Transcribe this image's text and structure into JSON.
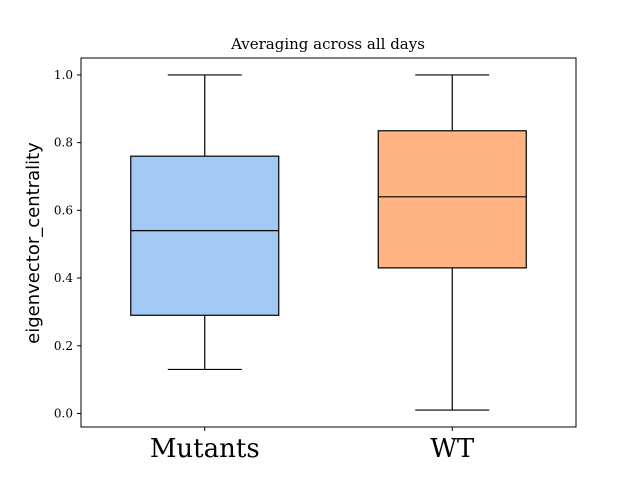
{
  "chart_data": {
    "type": "box",
    "title": "Averaging across all days",
    "xlabel": "",
    "ylabel": "eigenvector_centrality",
    "ylim": [
      -0.04,
      1.05
    ],
    "yticks": [
      "0.0",
      "0.2",
      "0.4",
      "0.6",
      "0.8",
      "1.0"
    ],
    "grid": false,
    "categories": [
      "Mutants",
      "WT"
    ],
    "boxes": [
      {
        "label": "Mutants",
        "whisker_low": 0.13,
        "q1": 0.29,
        "median": 0.54,
        "q3": 0.76,
        "whisker_high": 1.0,
        "color": "#a1c9f4"
      },
      {
        "label": "WT",
        "whisker_low": 0.01,
        "q1": 0.43,
        "median": 0.64,
        "q3": 0.835,
        "whisker_high": 1.0,
        "color": "#ffb482"
      }
    ]
  }
}
